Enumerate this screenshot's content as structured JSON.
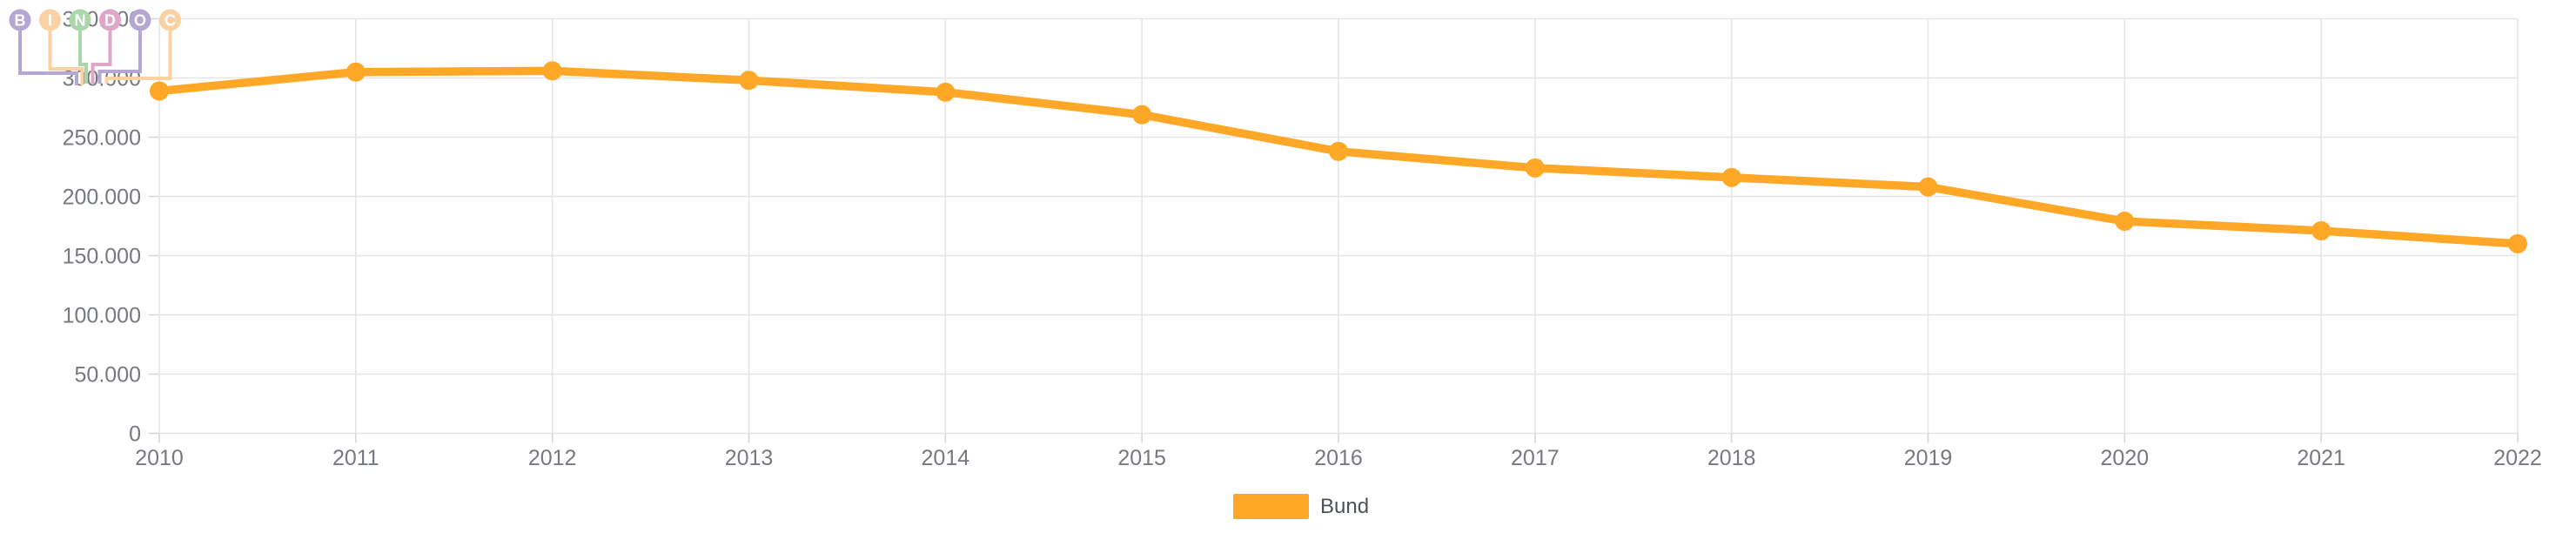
{
  "chart_data": {
    "type": "line",
    "title": "",
    "xlabel": "",
    "ylabel": "",
    "categories": [
      "2010",
      "2011",
      "2012",
      "2013",
      "2014",
      "2015",
      "2016",
      "2017",
      "2018",
      "2019",
      "2020",
      "2021",
      "2022"
    ],
    "series": [
      {
        "name": "Bund",
        "color": "#FFA726",
        "values": [
          289000,
          305000,
          306000,
          298000,
          288000,
          269000,
          238000,
          224000,
          216000,
          208000,
          179000,
          171000,
          160000
        ]
      }
    ],
    "ylim": [
      0,
      350000
    ],
    "y_ticks": [
      {
        "value": 0,
        "label": "0"
      },
      {
        "value": 50000,
        "label": "50.000"
      },
      {
        "value": 100000,
        "label": "100.000"
      },
      {
        "value": 150000,
        "label": "150.000"
      },
      {
        "value": 200000,
        "label": "200.000"
      },
      {
        "value": 250000,
        "label": "250.000"
      },
      {
        "value": 300000,
        "label": "300.000"
      },
      {
        "value": 350000,
        "label": "350.000"
      }
    ],
    "grid": true,
    "legend_position": "bottom-center"
  },
  "legend": {
    "items": [
      {
        "label": "Bund",
        "color": "#FFA726"
      }
    ]
  },
  "watermark": {
    "name": "BINDOC",
    "letters": [
      "B",
      "I",
      "N",
      "D",
      "O",
      "C"
    ],
    "colors": [
      "#b5a7d3",
      "#fad1a3",
      "#abd7ab",
      "#dfa6c8",
      "#b5a7d3",
      "#fad1a3"
    ]
  }
}
